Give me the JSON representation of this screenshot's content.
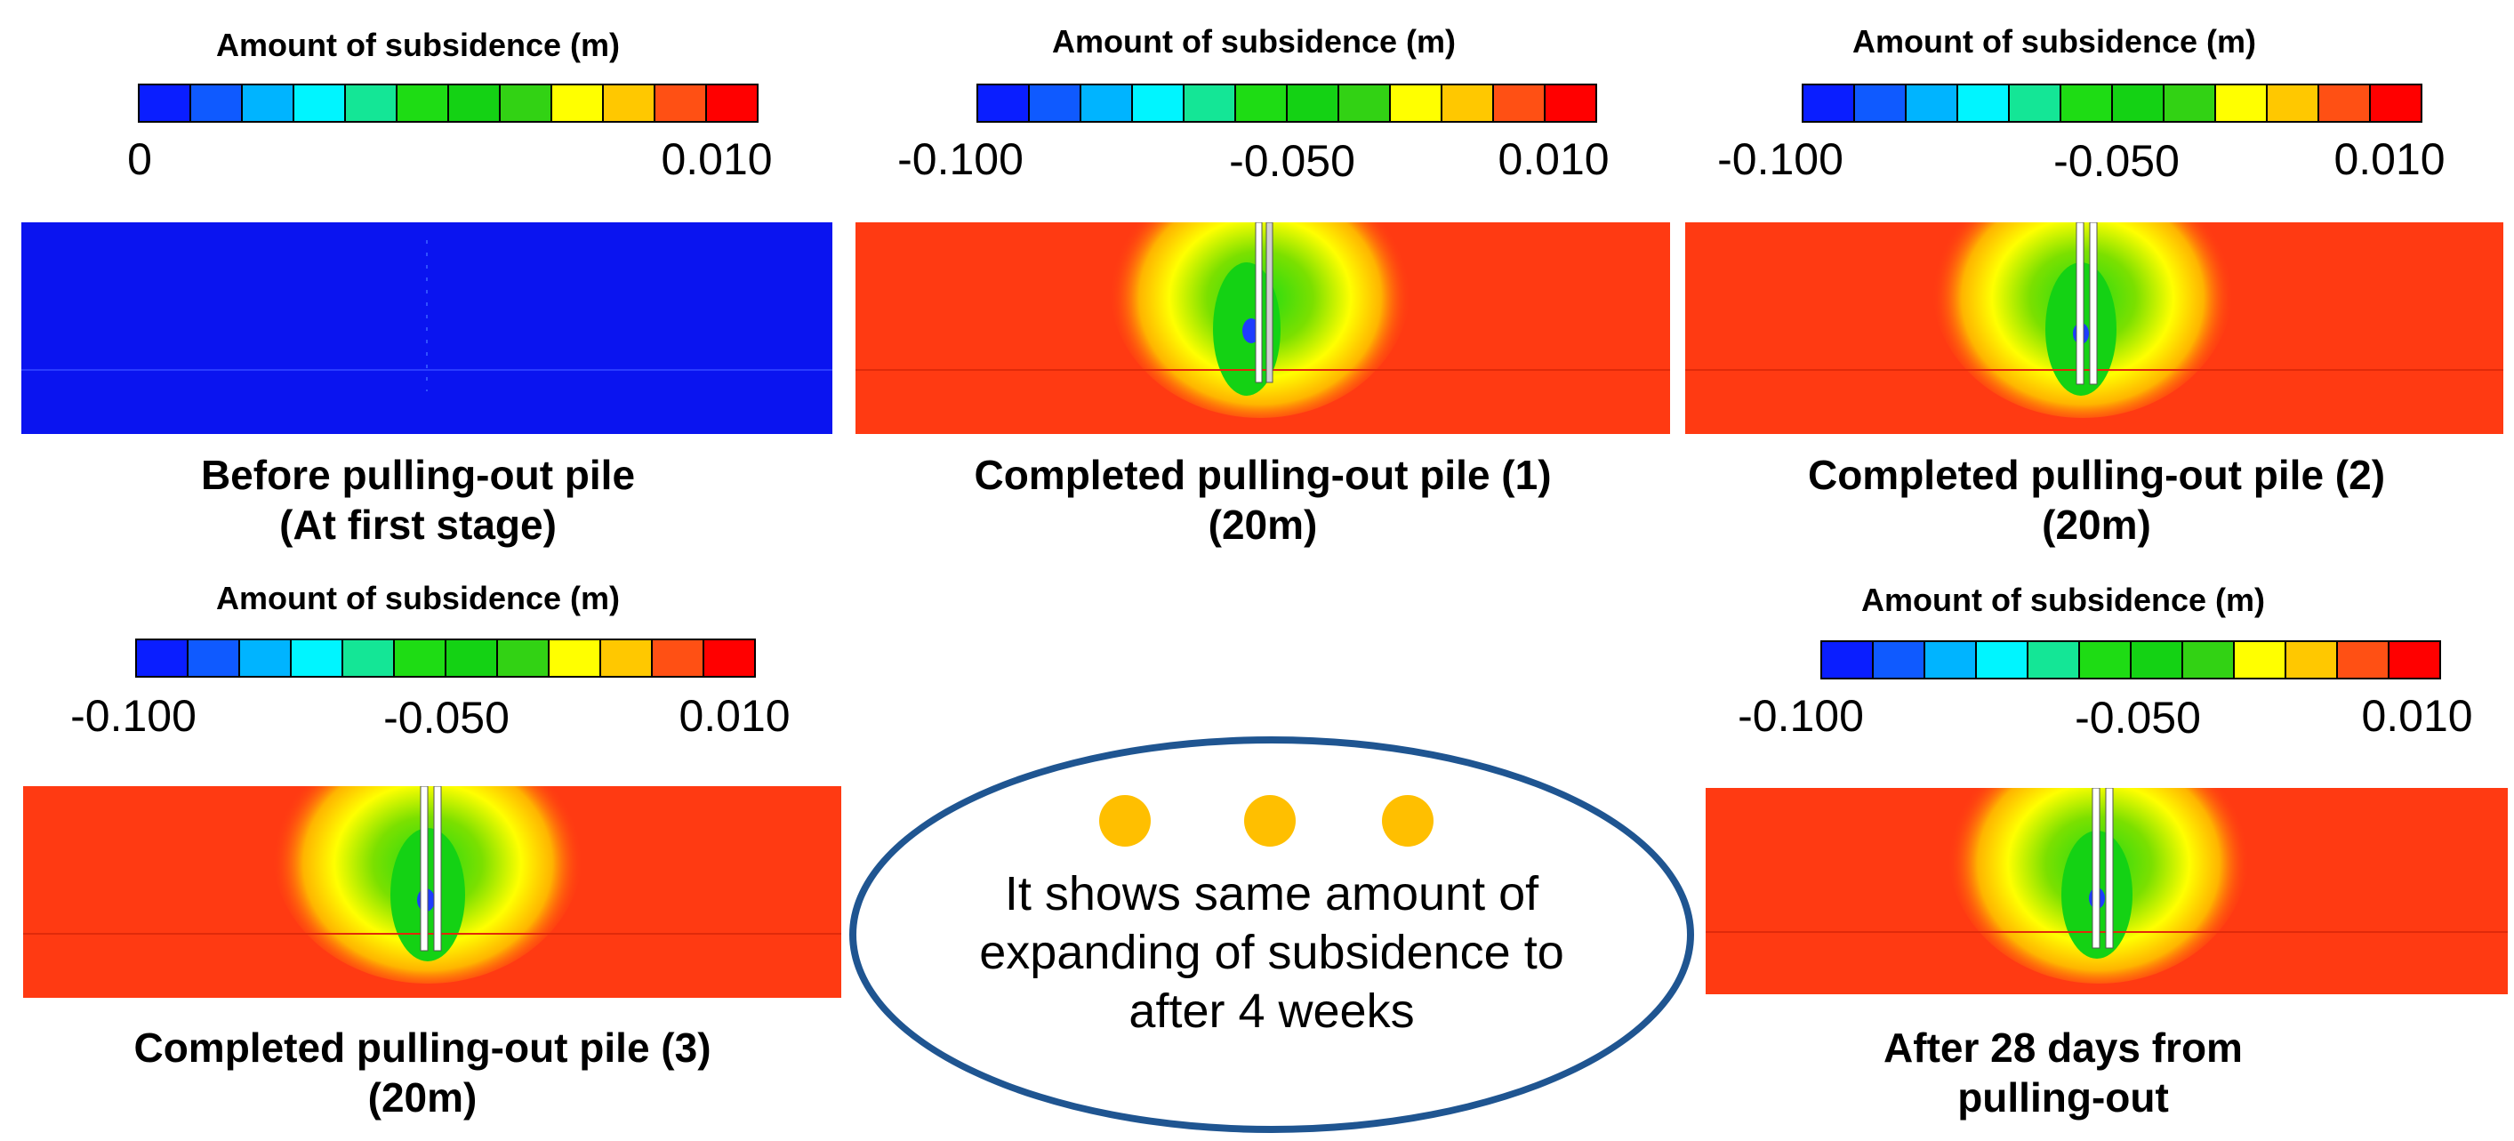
{
  "colors": {
    "scale": [
      "#0a1eff",
      "#0f5aff",
      "#00b4ff",
      "#00f5ff",
      "#14e696",
      "#1edc14",
      "#14d214",
      "#32d214",
      "#ffff00",
      "#ffc800",
      "#ff5014",
      "#ff0000"
    ],
    "field_background": "#ff3a12",
    "initial_field": "#0a14f0",
    "ellipse_border": "#1f5591",
    "dot": "#ffbf00"
  },
  "panels": [
    {
      "colorbar_title": "Amount of subsidence (m)",
      "tick_left": "0",
      "tick_mid": "",
      "tick_right": "0.010",
      "caption_line1": "Before pulling-out pile",
      "caption_line2": "(At first stage)"
    },
    {
      "colorbar_title": "Amount of subsidence (m)",
      "tick_left": "-0.100",
      "tick_mid": "-0.050",
      "tick_right": "0.010",
      "caption_line1": "Completed pulling-out pile (1)",
      "caption_line2": "(20m)"
    },
    {
      "colorbar_title": "Amount of subsidence (m)",
      "tick_left": "-0.100",
      "tick_mid": "-0.050",
      "tick_right": "0.010",
      "caption_line1": "Completed pulling-out pile (2)",
      "caption_line2": "(20m)"
    },
    {
      "colorbar_title": "Amount of subsidence (m)",
      "tick_left": "-0.100",
      "tick_mid": "-0.050",
      "tick_right": "0.010",
      "caption_line1": "Completed pulling-out pile (3)",
      "caption_line2": "(20m)"
    },
    {
      "colorbar_title": "Amount of subsidence (m)",
      "tick_left": "-0.100",
      "tick_mid": "-0.050",
      "tick_right": "0.010",
      "caption_line1": "After 28 days from",
      "caption_line2": "pulling-out"
    }
  ],
  "note": {
    "line1": "It shows same amount of",
    "line2": "expanding of subsidence to",
    "line3": "after 4 weeks"
  }
}
